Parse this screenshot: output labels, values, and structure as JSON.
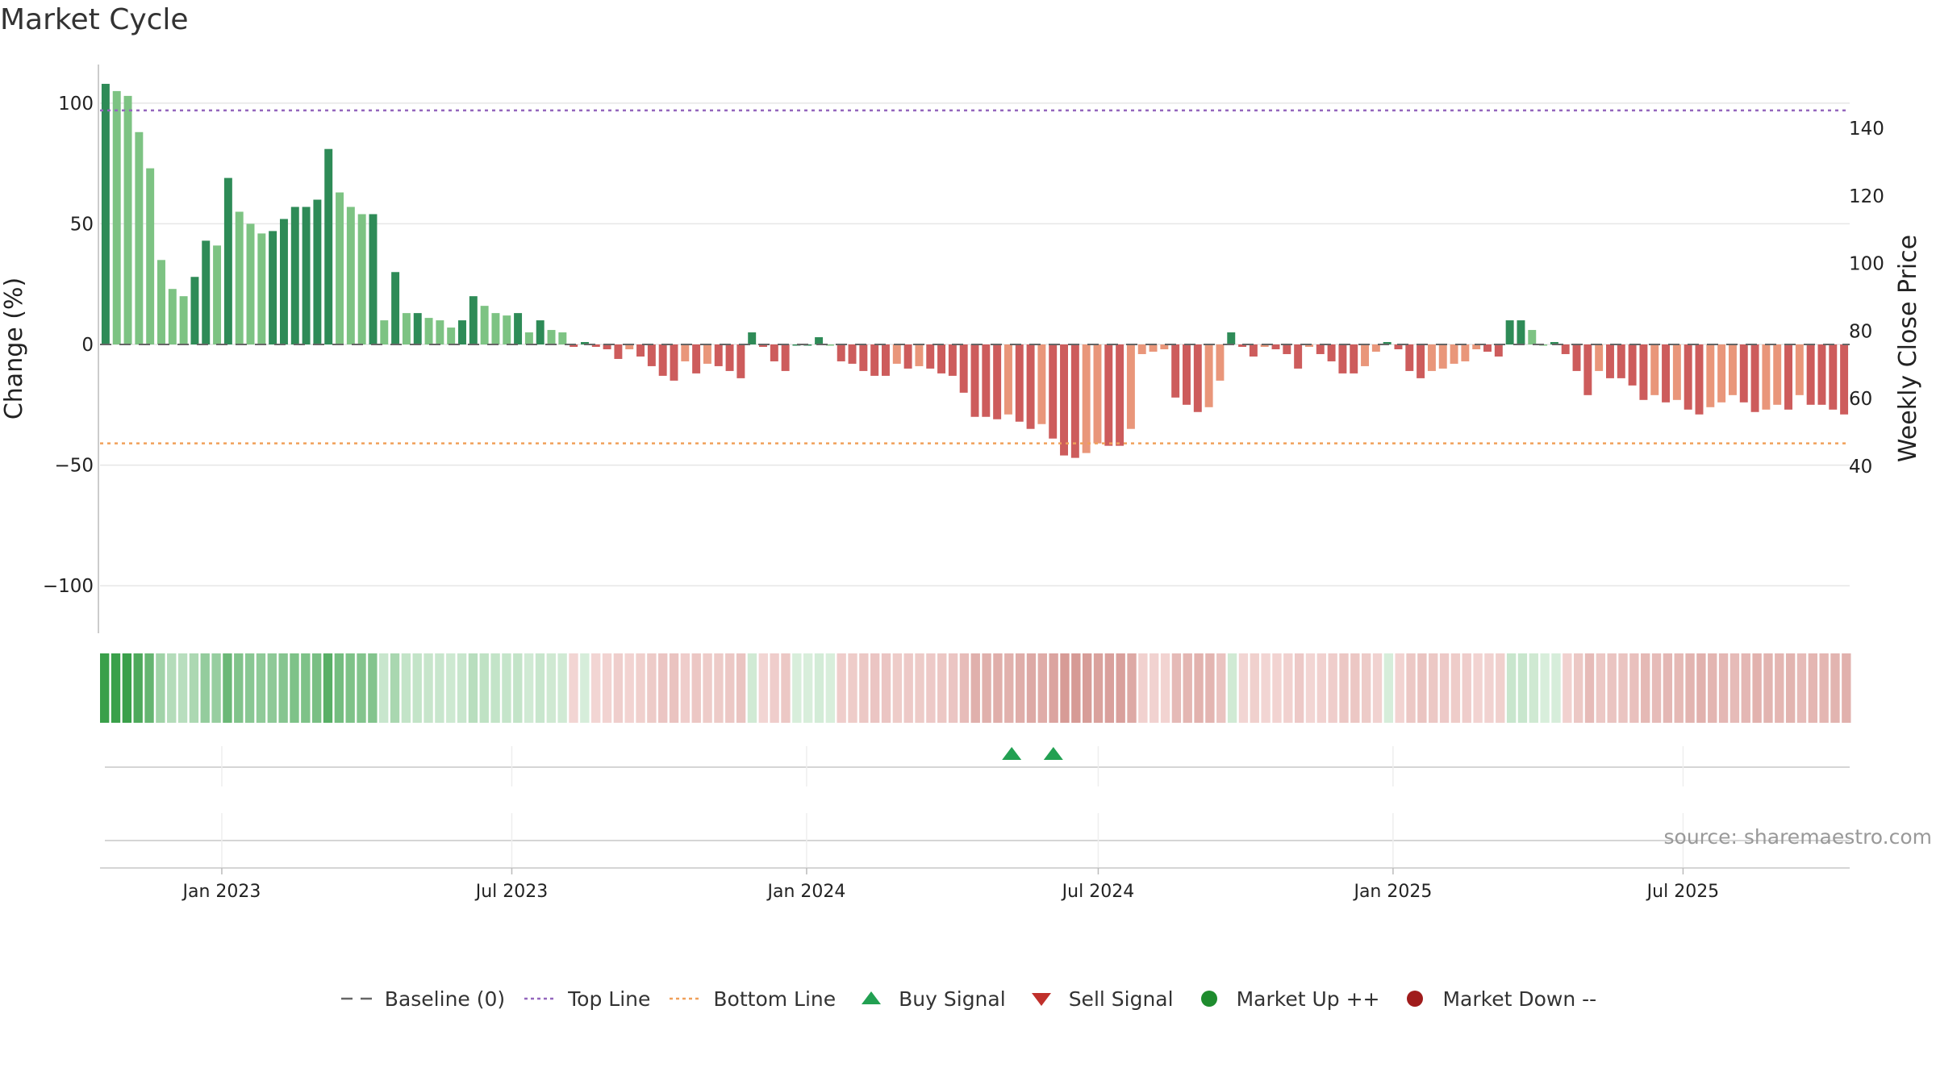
{
  "page": {
    "title": "Market Cycle"
  },
  "chart_data": {
    "type": "bar",
    "title": "Market Cycle",
    "ylabel": "Change (%)",
    "y2label": "Weekly Close Price",
    "ylim": [
      -118,
      116
    ],
    "y2lim": [
      31,
      150
    ],
    "yticks": [
      100,
      50,
      0,
      -50,
      -100
    ],
    "ytick_labels": [
      "100",
      "50",
      "0",
      "−50",
      "−100"
    ],
    "y2ticks": [
      140,
      120,
      100,
      80,
      60,
      40
    ],
    "y2tick_labels": [
      "140",
      "120",
      "100",
      "80",
      "60",
      "40"
    ],
    "baseline": 0,
    "top_line": 97,
    "bottom_line": -41,
    "x_start": "2022-10-17",
    "x_end": "2025-10-13",
    "date_ticks": [
      {
        "date": "2023-01-01",
        "label": "Jan 2023"
      },
      {
        "date": "2023-07-01",
        "label": "Jul 2023"
      },
      {
        "date": "2024-01-01",
        "label": "Jan 2024"
      },
      {
        "date": "2024-07-01",
        "label": "Jul 2024"
      },
      {
        "date": "2025-01-01",
        "label": "Jan 2025"
      },
      {
        "date": "2025-07-01",
        "label": "Jul 2025"
      }
    ],
    "weekly_change": [
      108,
      105,
      103,
      88,
      73,
      35,
      23,
      20,
      28,
      43,
      41,
      69,
      55,
      50,
      46,
      47,
      52,
      57,
      57,
      60,
      81,
      63,
      57,
      54,
      54,
      10,
      30,
      13,
      13,
      11,
      10,
      7,
      10,
      20,
      16,
      13,
      12,
      13,
      5,
      10,
      6,
      5,
      -1,
      1,
      -1,
      -2,
      -6,
      -2,
      -5,
      -9,
      -13,
      -15,
      -7,
      -12,
      -8,
      -9,
      -11,
      -14,
      5,
      -1,
      -7,
      -11,
      0,
      0,
      3,
      0,
      -7,
      -8,
      -11,
      -13,
      -13,
      -8,
      -10,
      -9,
      -10,
      -12,
      -13,
      -20,
      -30,
      -30,
      -31,
      -29,
      -32,
      -35,
      -33,
      -39,
      -46,
      -47,
      -45,
      -41,
      -42,
      -42,
      -35,
      -4,
      -3,
      -2,
      -22,
      -25,
      -28,
      -26,
      -15,
      5,
      -1,
      -5,
      -1,
      -2,
      -4,
      -10,
      -1,
      -4,
      -7,
      -12,
      -12,
      -9,
      -3,
      1,
      -2,
      -11,
      -14,
      -11,
      -10,
      -8,
      -7,
      -2,
      -3,
      -5,
      10,
      10,
      6,
      0,
      1,
      -4,
      -11,
      -21,
      -11,
      -14,
      -14,
      -17,
      -23,
      -21,
      -24,
      -23,
      -27,
      -29,
      -26,
      -24,
      -21,
      -24,
      -28,
      -27,
      -25,
      -27,
      -21,
      -25,
      -25,
      -27,
      -29
    ],
    "buy_signals": [
      {
        "date": "2024-05-08",
        "value": 0
      },
      {
        "date": "2024-06-03",
        "value": 0
      }
    ],
    "sell_signals": [],
    "colors": {
      "up_dark": "#2e8b57",
      "up_light": "#7dc383",
      "down_dark": "#cd5c5c",
      "down_light": "#e9967a",
      "top_line": "#9467bd",
      "bottom_line": "#f0a05a",
      "baseline": "#666666",
      "buy": "#22a052",
      "sell": "#c0302b",
      "market_up": "#1e8c2e",
      "market_down": "#a01c1c",
      "grid": "#e6e6e6",
      "axis": "#cccccc"
    },
    "legend": {
      "placement": "bottom-center",
      "items": [
        {
          "label": "Baseline (0)",
          "marker": "dash"
        },
        {
          "label": "Top Line",
          "marker": "dotted-purple"
        },
        {
          "label": "Bottom Line",
          "marker": "dotted-orange"
        },
        {
          "label": "Buy Signal",
          "marker": "triangle-up"
        },
        {
          "label": "Sell Signal",
          "marker": "triangle-down"
        },
        {
          "label": "Market Up ++",
          "marker": "circle-green"
        },
        {
          "label": "Market Down --",
          "marker": "circle-red"
        }
      ]
    },
    "annotation": "source: sharemaestro.com"
  }
}
